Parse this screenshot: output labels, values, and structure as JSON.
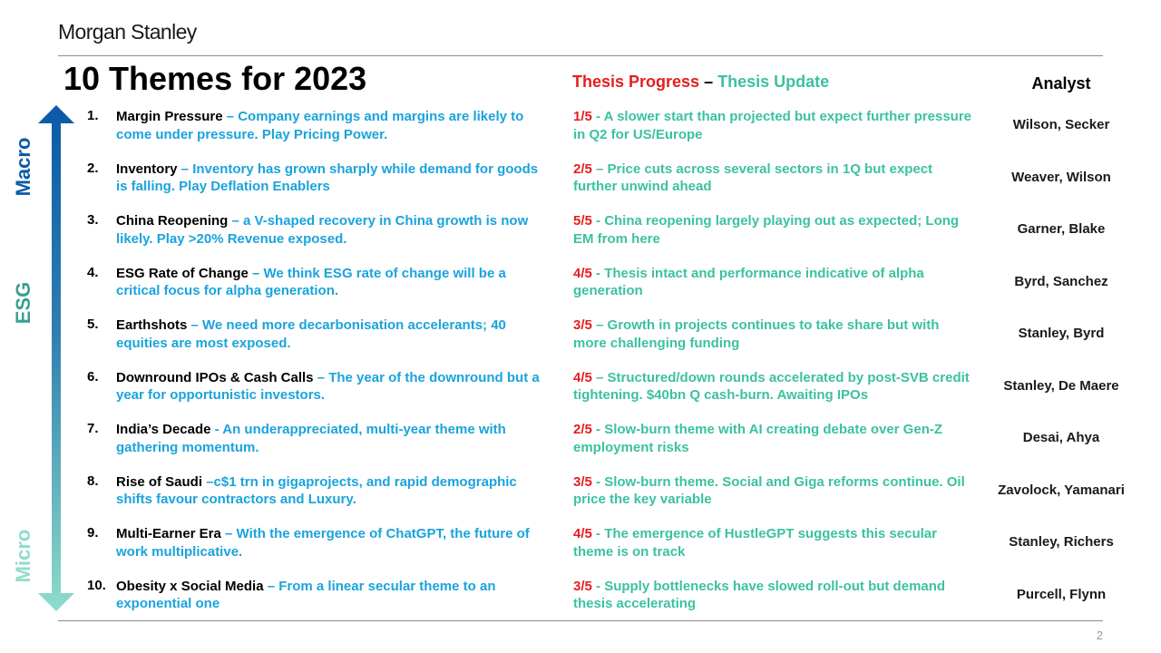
{
  "brand": "Morgan Stanley",
  "title": "10 Themes for 2023",
  "header": {
    "progress": "Thesis Progress",
    "dash": " – ",
    "update": "Thesis Update",
    "analyst": "Analyst"
  },
  "axis": {
    "top": "Macro",
    "middle": "ESG",
    "bottom": "Micro"
  },
  "colors": {
    "red": "#e41e1e",
    "blue": "#1aa3dc",
    "green": "#3cc1a0",
    "navy": "#0a5aa8",
    "teal": "#3a9e8f"
  },
  "themes": [
    {
      "num": "1.",
      "name": "Margin Pressure",
      "desc": " – Company earnings and margins are likely to come under pressure. Play Pricing Power.",
      "score": "1/5",
      "update": " - A slower start than projected but expect further pressure in Q2 for US/Europe",
      "analysts": "Wilson, Secker"
    },
    {
      "num": "2.",
      "name": "Inventory",
      "desc": " – Inventory has grown sharply while demand for goods is falling. Play Deflation Enablers",
      "score": "2/5",
      "update": " – Price cuts across several sectors in 1Q but expect further unwind ahead",
      "analysts": "Weaver, Wilson"
    },
    {
      "num": "3.",
      "name": "China Reopening",
      "desc": " – a V-shaped recovery in China growth is now likely. Play >20% Revenue exposed.",
      "score": "5/5",
      "update": " - China reopening largely playing out as expected; Long EM from here",
      "analysts": "Garner, Blake"
    },
    {
      "num": "4.",
      "name": "ESG Rate of Change",
      "desc": " – We think ESG rate of change will be a critical focus for alpha generation.",
      "score": "4/5",
      "update": " - Thesis intact and performance indicative of alpha generation",
      "analysts": "Byrd, Sanchez"
    },
    {
      "num": "5.",
      "name": "Earthshots",
      "desc": " – We need more decarbonisation accelerants; 40 equities are most exposed.",
      "score": "3/5",
      "update": " – Growth in projects continues to take share but with more challenging funding",
      "analysts": "Stanley, Byrd"
    },
    {
      "num": "6.",
      "name": "Downround IPOs & Cash Calls",
      "desc": " – The year of the downround but a year for opportunistic investors.",
      "score": "4/5",
      "update": " – Structured/down rounds accelerated by post-SVB credit tightening. $40bn Q cash-burn. Awaiting IPOs",
      "analysts": "Stanley, De Maere"
    },
    {
      "num": "7.",
      "name": "India’s Decade",
      "desc": " - An underappreciated, multi-year theme with gathering momentum.",
      "score": "2/5",
      "update": " - Slow-burn theme with AI creating debate over Gen-Z employment risks",
      "analysts": "Desai, Ahya"
    },
    {
      "num": "8.",
      "name": "Rise of Saudi",
      "desc": " –c$1 trn in gigaprojects, and rapid demographic shifts favour contractors and Luxury.",
      "score": "3/5",
      "update": " - Slow-burn theme. Social and Giga reforms continue. Oil price the key variable",
      "analysts": "Zavolock, Yamanari"
    },
    {
      "num": "9.",
      "name": "Multi-Earner Era",
      "desc": " – With the emergence of ChatGPT, the future of work multiplicative.",
      "score": "4/5",
      "update": " - The emergence of HustleGPT suggests this secular theme is on track",
      "analysts": "Stanley, Richers"
    },
    {
      "num": "10.",
      "name": "Obesity x Social Media",
      "desc": " – From a linear secular theme to an exponential one",
      "score": "3/5",
      "update": " - Supply bottlenecks have slowed roll-out but demand thesis accelerating",
      "analysts": "Purcell, Flynn"
    }
  ],
  "page_number": "2"
}
